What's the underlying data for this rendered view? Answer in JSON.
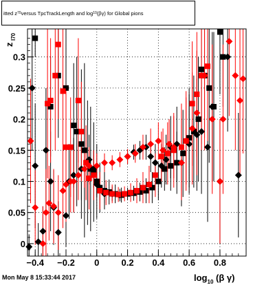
{
  "title": {
    "prefix": "itted",
    "z_label": "z",
    "z_sub": "70",
    "middle": " versus TpcTrackLength and log",
    "log_sub": "10",
    "suffix": "(βγ) for Global pions"
  },
  "footer": {
    "timestamp": "Mon May  8 15:33:44 2017"
  },
  "chart_data": {
    "type": "scatter",
    "title": "fitted z70 versus TpcTrackLength and log10(βγ) for Global pions",
    "xlabel": "log10 (β γ)",
    "ylabel": "z_{I70}",
    "xlim": [
      -0.45,
      0.97
    ],
    "ylim": [
      -0.02,
      0.345
    ],
    "x_ticks": [
      -0.4,
      -0.2,
      0,
      0.2,
      0.4,
      0.6,
      0.8
    ],
    "x_tick_labels": [
      "−0.4",
      "−0.2",
      "0",
      "0.2",
      "0.4",
      "0.6",
      "0.8"
    ],
    "y_ticks": [
      0,
      0.05,
      0.1,
      0.15,
      0.2,
      0.25,
      0.3
    ],
    "y_tick_labels": [
      "0",
      "0.05",
      "0.1",
      "0.15",
      "0.2",
      "0.25",
      "0.3"
    ],
    "grid": true,
    "series": [
      {
        "marker": "square",
        "color": "#000000",
        "points": [
          [
            -0.4,
            0.33,
            0.03
          ],
          [
            -0.3,
            0.22,
            0.08
          ],
          [
            -0.25,
            0.27,
            0.1
          ],
          [
            -0.2,
            0.25,
            0.12
          ],
          [
            -0.15,
            0.19,
            0.1
          ],
          [
            -0.13,
            0.18,
            0.12
          ],
          [
            -0.1,
            0.16,
            0.12
          ],
          [
            -0.08,
            0.15,
            0.14
          ],
          [
            -0.06,
            0.13,
            0.1
          ],
          [
            -0.04,
            0.12,
            0.1
          ],
          [
            -0.02,
            0.115,
            0.08
          ],
          [
            0.0,
            0.1,
            0.06
          ],
          [
            0.02,
            0.09,
            0.04
          ],
          [
            0.05,
            0.085,
            0.03
          ],
          [
            0.08,
            0.083,
            0.02
          ],
          [
            0.12,
            0.08,
            0.015
          ],
          [
            0.16,
            0.078,
            0.012
          ],
          [
            0.2,
            0.08,
            0.01
          ],
          [
            0.24,
            0.081,
            0.012
          ],
          [
            0.28,
            0.083,
            0.015
          ],
          [
            0.32,
            0.085,
            0.02
          ],
          [
            0.36,
            0.09,
            0.025
          ],
          [
            0.4,
            0.1,
            0.03
          ],
          [
            0.44,
            0.12,
            0.035
          ],
          [
            0.48,
            0.125,
            0.04
          ],
          [
            0.52,
            0.13,
            0.05
          ],
          [
            0.56,
            0.145,
            0.07
          ],
          [
            0.6,
            0.17,
            0.08
          ],
          [
            0.63,
            0.18,
            0.09
          ],
          [
            0.66,
            0.2,
            0.1
          ],
          [
            0.68,
            0.28,
            0.12
          ],
          [
            0.7,
            0.27,
            0.1
          ],
          [
            0.73,
            0.25,
            0.12
          ],
          [
            0.76,
            0.22,
            0.12
          ],
          [
            0.8,
            0.34,
            0.1
          ],
          [
            0.82,
            0.3,
            0.08
          ]
        ]
      },
      {
        "marker": "diamond",
        "color": "#000000",
        "points": [
          [
            -0.44,
            -0.005,
            0.02
          ],
          [
            -0.42,
            0.25,
            0.1
          ],
          [
            -0.4,
            0.125,
            0.1
          ],
          [
            -0.38,
            0.003,
            0.03
          ],
          [
            -0.35,
            0.02,
            0.04
          ],
          [
            -0.33,
            0.15,
            0.1
          ],
          [
            -0.3,
            0.1,
            0.08
          ],
          [
            -0.28,
            0.058,
            0.06
          ],
          [
            -0.25,
            0.018,
            0.05
          ],
          [
            -0.2,
            0.045,
            0.05
          ],
          [
            -0.18,
            0.1,
            0.06
          ],
          [
            -0.15,
            0.11,
            0.06
          ],
          [
            -0.1,
            0.12,
            0.05
          ],
          [
            -0.05,
            0.135,
            0.04
          ],
          [
            -0.02,
            0.12,
            0.03
          ],
          [
            0.0,
            0.095,
            0.02
          ],
          [
            0.05,
            0.08,
            0.015
          ],
          [
            0.1,
            0.08,
            0.012
          ],
          [
            0.15,
            0.078,
            0.01
          ],
          [
            0.2,
            0.14,
            0.012
          ],
          [
            0.24,
            0.147,
            0.012
          ],
          [
            0.28,
            0.15,
            0.015
          ],
          [
            0.32,
            0.155,
            0.02
          ],
          [
            0.35,
            0.14,
            0.025
          ],
          [
            0.38,
            0.13,
            0.03
          ],
          [
            0.42,
            0.125,
            0.035
          ],
          [
            0.45,
            0.135,
            0.04
          ],
          [
            0.48,
            0.155,
            0.05
          ],
          [
            0.52,
            0.16,
            0.06
          ],
          [
            0.55,
            0.13,
            0.07
          ],
          [
            0.6,
            0.16,
            0.08
          ],
          [
            0.65,
            0.175,
            0.09
          ],
          [
            0.68,
            0.18,
            0.1
          ],
          [
            0.72,
            0.155,
            0.12
          ],
          [
            0.75,
            0.22,
            0.12
          ],
          [
            0.8,
            0.1,
            0.1
          ],
          [
            0.85,
            0.3,
            0.12
          ],
          [
            0.92,
            0.11,
            0.1
          ]
        ]
      },
      {
        "marker": "square",
        "color": "#ff0000",
        "points": [
          [
            -0.32,
            0.225,
            0.12
          ],
          [
            -0.3,
            0.23,
            0.1
          ],
          [
            -0.27,
            0.27,
            0.12
          ],
          [
            -0.25,
            0.32,
            0.12
          ],
          [
            -0.22,
            0.245,
            0.12
          ],
          [
            -0.2,
            0.155,
            0.1
          ],
          [
            -0.17,
            0.155,
            0.08
          ],
          [
            -0.12,
            0.23,
            0.1
          ],
          [
            -0.1,
            0.18,
            0.08
          ],
          [
            -0.07,
            0.13,
            0.06
          ],
          [
            -0.05,
            0.105,
            0.05
          ],
          [
            -0.02,
            0.11,
            0.04
          ],
          [
            0.02,
            0.085,
            0.03
          ],
          [
            0.06,
            0.082,
            0.02
          ],
          [
            0.1,
            0.08,
            0.015
          ],
          [
            0.14,
            0.079,
            0.012
          ],
          [
            0.18,
            0.08,
            0.012
          ],
          [
            0.22,
            0.082,
            0.015
          ],
          [
            0.26,
            0.085,
            0.02
          ],
          [
            0.3,
            0.09,
            0.025
          ],
          [
            0.34,
            0.095,
            0.03
          ],
          [
            0.38,
            0.11,
            0.035
          ],
          [
            0.42,
            0.14,
            0.04
          ],
          [
            0.46,
            0.145,
            0.05
          ],
          [
            0.5,
            0.15,
            0.06
          ],
          [
            0.55,
            0.155,
            0.07
          ],
          [
            0.58,
            0.165,
            0.08
          ],
          [
            0.62,
            0.225,
            0.1
          ],
          [
            0.65,
            0.24,
            0.1
          ],
          [
            0.68,
            0.27,
            0.12
          ],
          [
            0.72,
            0.285,
            0.12
          ]
        ]
      },
      {
        "marker": "diamond",
        "color": "#ff0000",
        "points": [
          [
            -0.43,
            0.165,
            0.1
          ],
          [
            -0.4,
            0.058,
            0.06
          ],
          [
            -0.35,
            0.0,
            0.06
          ],
          [
            -0.33,
            0.05,
            0.07
          ],
          [
            -0.31,
            0.065,
            0.06
          ],
          [
            -0.28,
            0.06,
            0.06
          ],
          [
            -0.25,
            0.05,
            0.06
          ],
          [
            -0.22,
            0.085,
            0.06
          ],
          [
            -0.2,
            0.095,
            0.06
          ],
          [
            -0.17,
            0.1,
            0.05
          ],
          [
            -0.15,
            0.1,
            0.05
          ],
          [
            -0.12,
            0.11,
            0.04
          ],
          [
            -0.08,
            0.12,
            0.03
          ],
          [
            -0.05,
            0.125,
            0.03
          ],
          [
            0.0,
            0.125,
            0.02
          ],
          [
            0.05,
            0.13,
            0.015
          ],
          [
            0.1,
            0.13,
            0.012
          ],
          [
            0.15,
            0.135,
            0.012
          ],
          [
            0.2,
            0.14,
            0.012
          ],
          [
            0.25,
            0.145,
            0.015
          ],
          [
            0.3,
            0.155,
            0.02
          ],
          [
            0.35,
            0.16,
            0.025
          ],
          [
            0.4,
            0.165,
            0.03
          ],
          [
            0.43,
            0.15,
            0.035
          ],
          [
            0.47,
            0.16,
            0.04
          ],
          [
            0.5,
            0.155,
            0.05
          ],
          [
            0.55,
            0.13,
            0.06
          ],
          [
            0.58,
            0.165,
            0.07
          ],
          [
            0.62,
            0.185,
            0.09
          ],
          [
            0.65,
            0.21,
            0.1
          ],
          [
            0.7,
            0.27,
            0.12
          ],
          [
            0.75,
            0.2,
            0.12
          ],
          [
            0.8,
            0.1,
            0.1
          ],
          [
            0.82,
            0.2,
            0.12
          ],
          [
            0.86,
            0.325,
            0.12
          ],
          [
            0.9,
            0.27,
            0.12
          ],
          [
            0.93,
            0.23,
            0.12
          ],
          [
            0.95,
            0.265,
            0.12
          ]
        ]
      }
    ]
  }
}
